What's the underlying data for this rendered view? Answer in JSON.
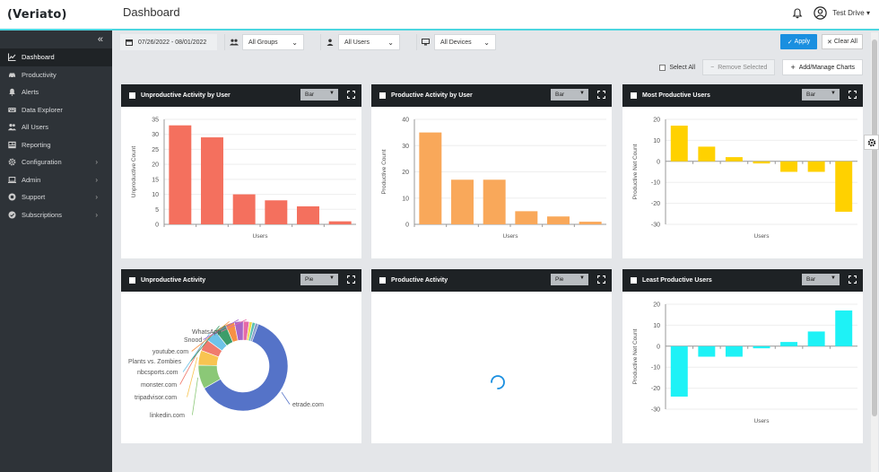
{
  "app": {
    "logo": "(Veriato)",
    "page_title": "Dashboard",
    "user_name": "Test Drive"
  },
  "sidebar": {
    "items": [
      {
        "label": "Dashboard",
        "icon": "chart-icon",
        "active": true,
        "chevron": false
      },
      {
        "label": "Productivity",
        "icon": "car-icon",
        "active": false,
        "chevron": false
      },
      {
        "label": "Alerts",
        "icon": "bell-icon",
        "active": false,
        "chevron": false
      },
      {
        "label": "Data Explorer",
        "icon": "keyboard-icon",
        "active": false,
        "chevron": false
      },
      {
        "label": "All Users",
        "icon": "users-icon",
        "active": false,
        "chevron": false
      },
      {
        "label": "Reporting",
        "icon": "report-icon",
        "active": false,
        "chevron": false
      },
      {
        "label": "Configuration",
        "icon": "gear-icon",
        "active": false,
        "chevron": true
      },
      {
        "label": "Admin",
        "icon": "laptop-icon",
        "active": false,
        "chevron": true
      },
      {
        "label": "Support",
        "icon": "support-icon",
        "active": false,
        "chevron": true
      },
      {
        "label": "Subscriptions",
        "icon": "subscription-icon",
        "active": false,
        "chevron": true
      }
    ]
  },
  "filters": {
    "date_range": "07/26/2022 - 08/01/2022",
    "groups": "All Groups",
    "users": "All Users",
    "devices": "All Devices",
    "apply_label": "Apply",
    "clear_label": "Clear All"
  },
  "actions": {
    "select_all": "Select All",
    "remove_selected": "Remove Selected",
    "manage_charts": "Add/Manage Charts"
  },
  "colors": {
    "accent": "#1a8fe0",
    "header_line": "#4dd6e0",
    "red": "#f4705e",
    "orange": "#f9a85a",
    "yellow": "#ffd100",
    "cyan": "#1ef2f6",
    "donut_main": "#5573c8"
  },
  "cards": [
    {
      "title": "Unproductive Activity by User",
      "type_label": "Bar"
    },
    {
      "title": "Productive Activity by User",
      "type_label": "Bar"
    },
    {
      "title": "Most Productive Users",
      "type_label": "Bar"
    },
    {
      "title": "Unproductive Activity",
      "type_label": "Pie"
    },
    {
      "title": "Productive Activity",
      "type_label": "Pie"
    },
    {
      "title": "Least Productive Users",
      "type_label": "Bar"
    }
  ],
  "chart_data": [
    {
      "type": "bar",
      "title": "Unproductive Activity by User",
      "xlabel": "Users",
      "ylabel": "Unproductive Count",
      "ylim": [
        0,
        35
      ],
      "yticks": [
        0,
        5,
        10,
        15,
        20,
        25,
        30,
        35
      ],
      "values": [
        33,
        29,
        10,
        8,
        6,
        1
      ],
      "color": "#f4705e"
    },
    {
      "type": "bar",
      "title": "Productive Activity by User",
      "xlabel": "Users",
      "ylabel": "Productive Count",
      "ylim": [
        0,
        40
      ],
      "yticks": [
        0,
        10,
        20,
        30,
        40
      ],
      "values": [
        35,
        17,
        17,
        5,
        3,
        1
      ],
      "color": "#f9a85a"
    },
    {
      "type": "bar",
      "title": "Most Productive Users",
      "xlabel": "Users",
      "ylabel": "Productive Net Count",
      "ylim": [
        -30,
        20
      ],
      "yticks": [
        20,
        10,
        0,
        -10,
        -20,
        -30
      ],
      "values": [
        17,
        7,
        2,
        -1,
        -5,
        -5,
        -24
      ],
      "color": "#ffd100"
    },
    {
      "type": "pie",
      "title": "Unproductive Activity",
      "labels": [
        "etrade.com",
        "linkedin.com",
        "tripadvisor.com",
        "monster.com",
        "nbcsports.com",
        "Plants vs. Zombies",
        "youtube.com",
        "Snood",
        "WhatsApp"
      ],
      "values": [
        60,
        8,
        5,
        4,
        4,
        4,
        3,
        3,
        2
      ]
    },
    {
      "type": "bar",
      "title": "Least Productive Users",
      "xlabel": "Users",
      "ylabel": "Productive Net Count",
      "ylim": [
        -30,
        20
      ],
      "yticks": [
        20,
        10,
        0,
        -10,
        -20,
        -30
      ],
      "values": [
        -24,
        -5,
        -5,
        -1,
        2,
        7,
        17
      ],
      "color": "#1ef2f6"
    }
  ]
}
